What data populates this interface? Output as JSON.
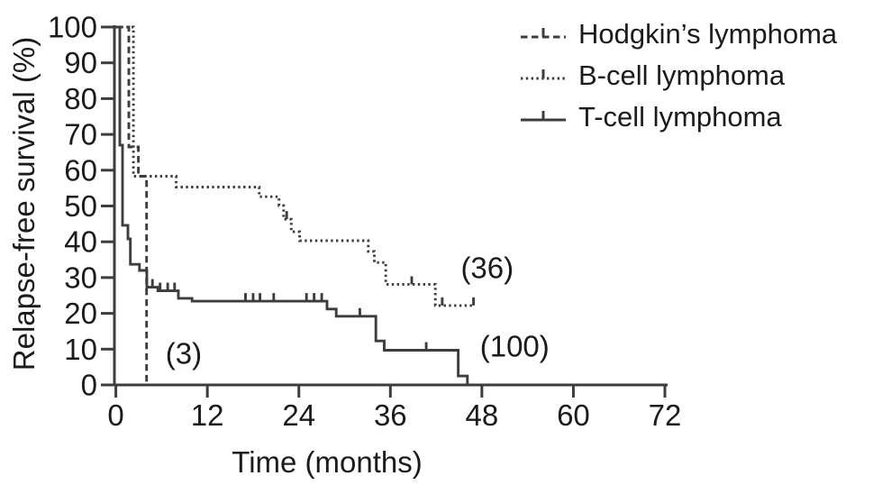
{
  "figure": {
    "background": "#ffffff",
    "text_color": "#1b1b1b",
    "line_color": "#3d3d3d"
  },
  "legend": {
    "position": "top-right",
    "items": [
      {
        "id": "hodgkin",
        "label": "Hodgkin’s lymphoma",
        "line_style": "dashed"
      },
      {
        "id": "bcell",
        "label": "B-cell lymphoma",
        "line_style": "dotted"
      },
      {
        "id": "tcell",
        "label": "T-cell lymphoma",
        "line_style": "solid"
      }
    ]
  },
  "chart_data": {
    "type": "line",
    "subtype": "kaplan-meier-step",
    "title": "",
    "xlabel": "Time (months)",
    "ylabel": "Relapse-free survival (%)",
    "xlim": [
      0,
      72
    ],
    "ylim": [
      0,
      100
    ],
    "xticks": [
      0,
      12,
      24,
      36,
      48,
      60,
      72
    ],
    "yticks": [
      0,
      10,
      20,
      30,
      40,
      50,
      60,
      70,
      80,
      90,
      100
    ],
    "grid": false,
    "legend_position": "top-right",
    "series": [
      {
        "id": "hodgkin",
        "name": "Hodgkin’s lymphoma",
        "style": "dashed",
        "dash": "7.5 4.5",
        "n_label": "(3)",
        "points": [
          [
            0,
            100
          ],
          [
            1.7,
            100
          ],
          [
            1.7,
            66.5
          ],
          [
            2.95,
            66.5
          ],
          [
            2.95,
            58.3
          ],
          [
            4.03,
            58.3
          ],
          [
            4.03,
            0
          ]
        ],
        "censors": []
      },
      {
        "id": "bcell",
        "name": "B-cell lymphoma",
        "style": "dotted",
        "dash": "2.4 3.4",
        "n_label": "(36)",
        "points": [
          [
            0,
            100
          ],
          [
            2.3,
            100
          ],
          [
            2.3,
            58.3
          ],
          [
            7.9,
            58.3
          ],
          [
            7.9,
            55.3
          ],
          [
            18.8,
            55.3
          ],
          [
            18.8,
            52.6
          ],
          [
            21.4,
            52.6
          ],
          [
            21.4,
            50.1
          ],
          [
            22.0,
            50.1
          ],
          [
            22.0,
            46.3
          ],
          [
            23.0,
            46.3
          ],
          [
            23.0,
            42.8
          ],
          [
            24.1,
            42.8
          ],
          [
            24.1,
            40.3
          ],
          [
            33.1,
            40.3
          ],
          [
            33.1,
            37.3
          ],
          [
            33.9,
            37.3
          ],
          [
            33.9,
            34.2
          ],
          [
            35.4,
            34.2
          ],
          [
            35.4,
            28.1
          ],
          [
            41.9,
            28.1
          ],
          [
            41.9,
            22.2
          ],
          [
            46.9,
            22.2
          ]
        ],
        "censors": [
          [
            22.4,
            46.3
          ],
          [
            38.8,
            28.1
          ],
          [
            42.8,
            22.2
          ],
          [
            46.9,
            22.2
          ]
        ]
      },
      {
        "id": "tcell",
        "name": "T-cell lymphoma",
        "style": "solid",
        "dash": "",
        "n_label": "(100)",
        "points": [
          [
            0,
            100
          ],
          [
            0.52,
            100
          ],
          [
            0.52,
            67
          ],
          [
            0.87,
            67
          ],
          [
            0.87,
            44.6
          ],
          [
            1.58,
            44.6
          ],
          [
            1.58,
            40.8
          ],
          [
            1.9,
            40.8
          ],
          [
            1.9,
            33.7
          ],
          [
            3.1,
            33.7
          ],
          [
            3.1,
            32
          ],
          [
            4.07,
            32
          ],
          [
            4.07,
            27.3
          ],
          [
            5.5,
            27.3
          ],
          [
            5.5,
            26.3
          ],
          [
            8.2,
            26.3
          ],
          [
            8.2,
            24.2
          ],
          [
            10,
            24.2
          ],
          [
            10,
            23.4
          ],
          [
            27.7,
            23.4
          ],
          [
            27.7,
            21.2
          ],
          [
            28.9,
            21.2
          ],
          [
            28.9,
            19.2
          ],
          [
            34.1,
            19.2
          ],
          [
            34.1,
            12.3
          ],
          [
            35.2,
            12.3
          ],
          [
            35.2,
            9.7
          ],
          [
            44.9,
            9.7
          ],
          [
            44.9,
            2.5
          ],
          [
            46.1,
            2.5
          ],
          [
            46.1,
            0
          ]
        ],
        "censors": [
          [
            4.8,
            27.3
          ],
          [
            5.8,
            26.3
          ],
          [
            6.8,
            26.3
          ],
          [
            7.7,
            26.3
          ],
          [
            17,
            23.4
          ],
          [
            18,
            23.4
          ],
          [
            18.9,
            23.4
          ],
          [
            20.7,
            23.4
          ],
          [
            25,
            23.4
          ],
          [
            26,
            23.4
          ],
          [
            27,
            23.4
          ],
          [
            32,
            19.2
          ],
          [
            40.7,
            9.7
          ]
        ]
      }
    ],
    "annotations": [
      {
        "text": "(3)",
        "x": 8.9,
        "y": 8.8
      },
      {
        "text": "(36)",
        "x": 48.7,
        "y": 32.7
      },
      {
        "text": "(100)",
        "x": 52.3,
        "y": 10.8
      }
    ]
  }
}
